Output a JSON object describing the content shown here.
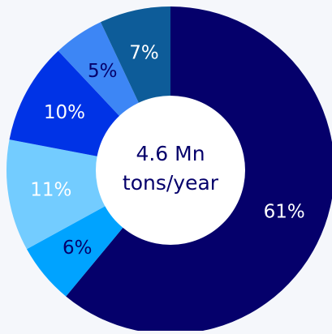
{
  "chart_data": {
    "type": "pie",
    "variant": "donut",
    "center_text": [
      "4.6 Mn",
      "tons/year"
    ],
    "slices": [
      {
        "label": "61%",
        "value": 61,
        "color": "#05006b",
        "text_color": "#ffffff"
      },
      {
        "label": "6%",
        "value": 6,
        "color": "#00a3ff",
        "text_color": "#05006b"
      },
      {
        "label": "11%",
        "value": 11,
        "color": "#73ccff",
        "text_color": "#ffffff"
      },
      {
        "label": "10%",
        "value": 10,
        "color": "#0033e6",
        "text_color": "#ffffff"
      },
      {
        "label": "5%",
        "value": 5,
        "color": "#3d86f5",
        "text_color": "#05006b"
      },
      {
        "label": "7%",
        "value": 7,
        "color": "#0d5c99",
        "text_color": "#ffffff"
      }
    ],
    "center_fill": "#ffffff",
    "center_text_color": "#05006b"
  }
}
